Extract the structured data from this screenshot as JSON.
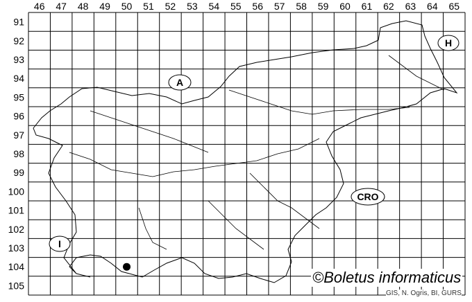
{
  "map": {
    "columns": [
      "46",
      "47",
      "48",
      "49",
      "50",
      "51",
      "52",
      "53",
      "54",
      "55",
      "56",
      "57",
      "58",
      "59",
      "60",
      "61",
      "62",
      "63",
      "64",
      "65"
    ],
    "rows": [
      "91",
      "92",
      "93",
      "94",
      "95",
      "96",
      "97",
      "98",
      "99",
      "100",
      "101",
      "102",
      "103",
      "104",
      "105"
    ],
    "country_labels": {
      "austria": "A",
      "hungary": "H",
      "croatia": "CRO",
      "italy": "I"
    },
    "records": [
      {
        "column": "50",
        "row": "104"
      }
    ],
    "credit": "©Boletus informaticus",
    "source": "GIS, N. Ogris, BI, GURS",
    "colors": {
      "grid": "#000000",
      "border": "#000000",
      "record": "#000000"
    }
  }
}
